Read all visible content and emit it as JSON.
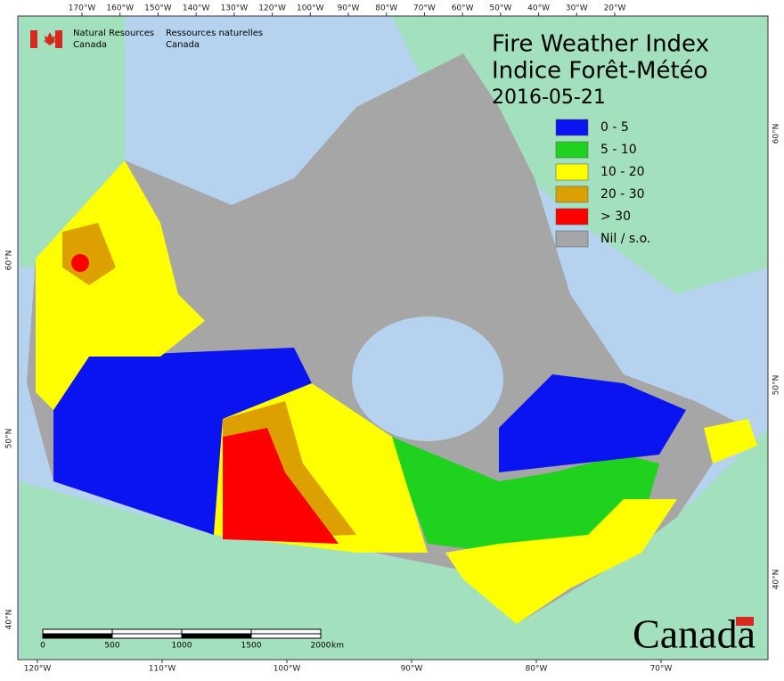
{
  "header": {
    "agency_en": [
      "Natural Resources",
      "Canada"
    ],
    "agency_fr": [
      "Ressources naturelles",
      "Canada"
    ],
    "wordmark": "Canada"
  },
  "title": {
    "line1": "Fire Weather Index",
    "line2": "Indice Forêt-Météo",
    "date": "2016-05-21"
  },
  "legend": [
    {
      "label": "0 - 5",
      "color": "#0a14f0"
    },
    {
      "label": "5 - 10",
      "color": "#1ed21e"
    },
    {
      "label": "10 - 20",
      "color": "#ffff00"
    },
    {
      "label": "20 - 30",
      "color": "#dca000"
    },
    {
      "label": "> 30",
      "color": "#ff0000"
    },
    {
      "label": "Nil / s.o.",
      "color": "#a6a6a6"
    }
  ],
  "graticule": {
    "top": [
      "170°W",
      "160°W",
      "150°W",
      "140°W",
      "130°W",
      "120°W",
      "100°W",
      "90°W",
      "80°W",
      "70°W",
      "60°W",
      "50°W",
      "40°W",
      "30°W",
      "20°W"
    ],
    "bottom": [
      "120°W",
      "110°W",
      "100°W",
      "90°W",
      "80°W",
      "70°W"
    ],
    "left": [
      "60°N",
      "50°N",
      "40°N"
    ],
    "right": [
      "60°N",
      "50°N",
      "40°N"
    ]
  },
  "scale_bar": {
    "labels": [
      "0",
      "500",
      "1000",
      "1500",
      "2000"
    ],
    "unit": "km"
  }
}
